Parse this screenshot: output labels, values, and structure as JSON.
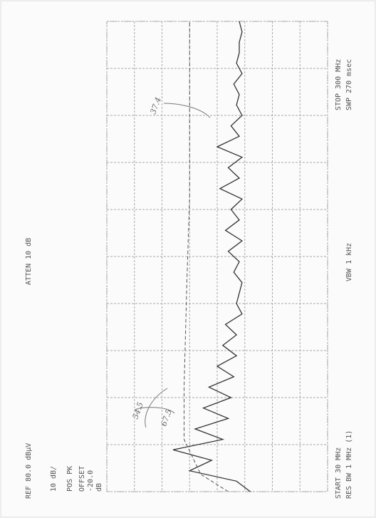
{
  "chart_data": {
    "type": "line",
    "ref_label": "REF 80.0 dBµV",
    "atten_label": "ATTEN 10 dB",
    "scale_label": "10 dB/",
    "detector_label": "POS PK",
    "offset_label": "OFFSET",
    "offset_value_label": "-20.0",
    "offset_unit_label": "dB",
    "start_label": "START 30 MHz",
    "rbw_label": "RES BW 1 MHz (1)",
    "vbw_label": "VBW 1 kHz",
    "stop_label": "STOP 300 MHz",
    "sweep_label": "SWP 270 msec",
    "annotations": [
      "67.5",
      "54.5",
      "37.4"
    ],
    "xlim": [
      30,
      300
    ],
    "xticks": [
      30,
      57,
      84,
      111,
      138,
      165,
      192,
      219,
      246,
      273,
      300
    ],
    "ylim": [
      0,
      80
    ],
    "yticks": [
      0,
      10,
      20,
      30,
      40,
      50,
      60,
      70,
      80
    ],
    "grid": true,
    "series": [
      {
        "color": "#333333",
        "dashed": false,
        "x": [
          30,
          36,
          42,
          48,
          54,
          60,
          66,
          72,
          78,
          84,
          90,
          96,
          102,
          108,
          114,
          120,
          126,
          132,
          138,
          144,
          150,
          156,
          162,
          168,
          174,
          180,
          186,
          192,
          198,
          204,
          210,
          216,
          222,
          228,
          234,
          240,
          246,
          252,
          258,
          264,
          270,
          276,
          282,
          288,
          294,
          300
        ],
        "values": [
          28,
          33,
          50,
          42,
          56,
          38,
          48,
          36,
          45,
          35,
          43,
          34,
          40,
          33,
          38,
          33,
          37,
          31,
          33,
          32,
          31,
          34,
          32,
          36,
          31,
          37,
          32,
          35,
          31,
          39,
          32,
          36,
          31,
          40,
          32,
          35,
          31,
          33,
          32,
          34,
          31,
          33,
          32,
          32,
          31,
          32
        ]
      },
      {
        "color": "#555555",
        "dashed": true,
        "x": [
          30,
          40,
          60,
          90,
          150,
          200,
          250,
          300
        ],
        "values": [
          36,
          46,
          52,
          52,
          51,
          50,
          50,
          50
        ]
      }
    ]
  }
}
